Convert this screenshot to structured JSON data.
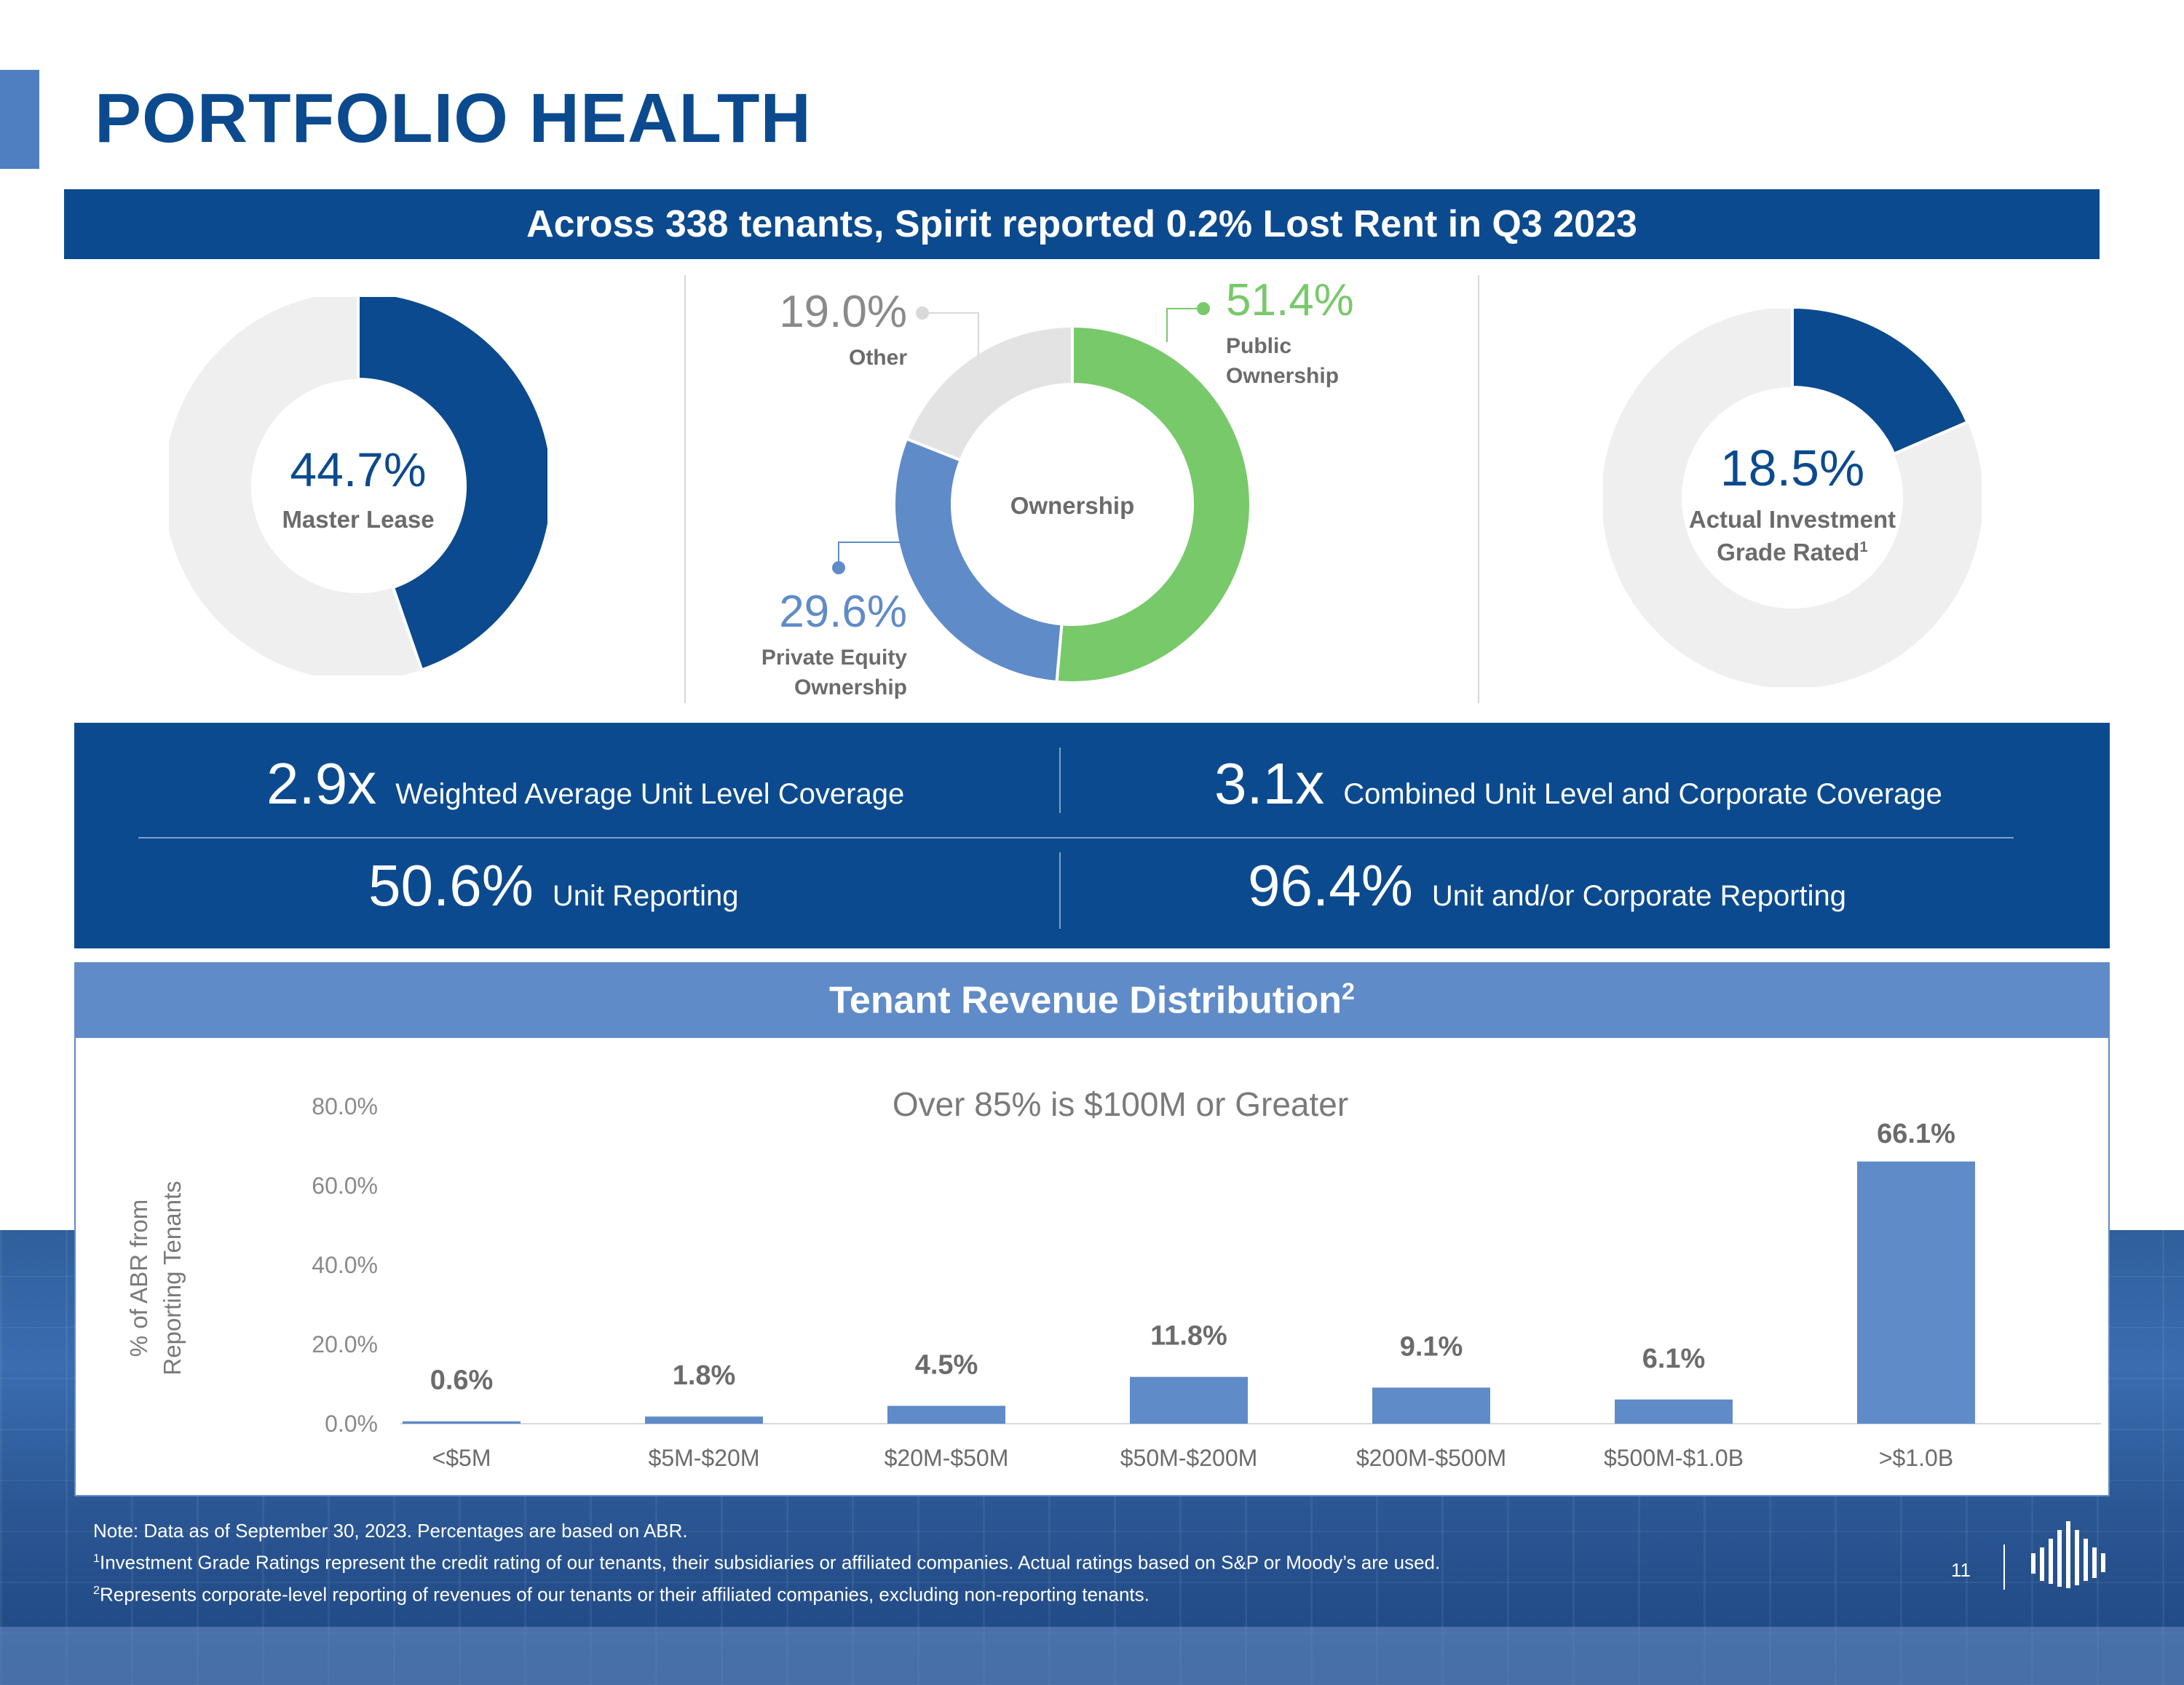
{
  "title": "PORTFOLIO HEALTH",
  "headline": "Across 338 tenants, Spirit reported 0.2% Lost Rent in Q3 2023",
  "colors": {
    "navy": "#0b4a8e",
    "mid_blue": "#5f8bc8",
    "green": "#78c96a",
    "light_gray": "#efefef",
    "gray": "#e3e3e3"
  },
  "donut_master_lease": {
    "value": "44.7%",
    "label": "Master Lease",
    "fraction": 0.447
  },
  "donut_ownership": {
    "center_label": "Ownership",
    "segments": [
      {
        "value": "51.4%",
        "label_line1": "Public",
        "label_line2": "Ownership",
        "fraction": 0.514,
        "color": "#78c96a"
      },
      {
        "value": "29.6%",
        "label_line1": "Private Equity",
        "label_line2": "Ownership",
        "fraction": 0.296,
        "color": "#5f8bc8"
      },
      {
        "value": "19.0%",
        "label_line1": "Other",
        "label_line2": "",
        "fraction": 0.19,
        "color": "#e3e3e3"
      }
    ]
  },
  "donut_investment_grade": {
    "value": "18.5%",
    "label_line1": "Actual Investment",
    "label_line2": "Grade Rated",
    "label_sup": "1",
    "fraction": 0.185
  },
  "metrics": [
    {
      "value": "2.9x",
      "label": "Weighted Average Unit Level Coverage"
    },
    {
      "value": "3.1x",
      "label": "Combined Unit Level and Corporate Coverage"
    },
    {
      "value": "50.6%",
      "label": "Unit Reporting"
    },
    {
      "value": "96.4%",
      "label": "Unit and/or Corporate Reporting"
    }
  ],
  "revenue": {
    "title": "Tenant Revenue Distribution",
    "title_sup": "2"
  },
  "chart_data": {
    "type": "bar",
    "title": "Over 85% is $100M or Greater",
    "ylabel_line1": "% of ABR from",
    "ylabel_line2": "Reporting Tenants",
    "categories": [
      "<$5M",
      "$5M-$20M",
      "$20M-$50M",
      "$50M-$200M",
      "$200M-$500M",
      "$500M-$1.0B",
      ">$1.0B"
    ],
    "values": [
      0.6,
      1.8,
      4.5,
      11.8,
      9.1,
      6.1,
      66.1
    ],
    "data_labels": [
      "0.6%",
      "1.8%",
      "4.5%",
      "11.8%",
      "9.1%",
      "6.1%",
      "66.1%"
    ],
    "yticks": [
      "0.0%",
      "20.0%",
      "40.0%",
      "60.0%",
      "80.0%"
    ],
    "ylim": [
      0,
      80
    ],
    "bar_color": "#5f8bc8",
    "grid": false,
    "legend": "none"
  },
  "notes": {
    "line1": "Note: Data as of September 30, 2023. Percentages are based on ABR.",
    "line2_sup": "1",
    "line2": "Investment Grade Ratings represent the credit rating of our tenants, their subsidiaries or affiliated companies. Actual ratings based on S&P or Moody’s are used.",
    "line3_sup": "2",
    "line3": "Represents corporate-level reporting of revenues of our tenants or their affiliated companies, excluding non-reporting tenants."
  },
  "page_number": "11",
  "logo_icon": "spirit-logo-icon"
}
